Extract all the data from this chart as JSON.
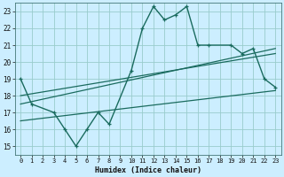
{
  "xlabel": "Humidex (Indice chaleur)",
  "bg_color": "#cceeff",
  "line_color": "#1a6b5e",
  "grid_color": "#99cccc",
  "xlim": [
    -0.5,
    23.5
  ],
  "ylim": [
    14.5,
    23.5
  ],
  "xticks": [
    0,
    1,
    2,
    3,
    4,
    5,
    6,
    7,
    8,
    9,
    10,
    11,
    12,
    13,
    14,
    15,
    16,
    17,
    18,
    19,
    20,
    21,
    22,
    23
  ],
  "yticks": [
    15,
    16,
    17,
    18,
    19,
    20,
    21,
    22,
    23
  ],
  "main_x": [
    0,
    1,
    3,
    4,
    5,
    6,
    7,
    8,
    10,
    11,
    12,
    13,
    14,
    15,
    16,
    17,
    19,
    20,
    21,
    22,
    23
  ],
  "main_y": [
    19,
    17.5,
    17,
    16,
    15,
    16,
    17,
    16.3,
    19.5,
    22.0,
    23.3,
    22.5,
    22.8,
    23.3,
    21.0,
    21.0,
    21.0,
    20.5,
    20.8,
    19.0,
    18.5
  ],
  "reg_lines": [
    {
      "x0": 0,
      "y0": 18.0,
      "x1": 23,
      "y1": 20.5
    },
    {
      "x0": 0,
      "y0": 17.5,
      "x1": 23,
      "y1": 20.8
    },
    {
      "x0": 0,
      "y0": 16.5,
      "x1": 23,
      "y1": 18.3
    }
  ]
}
